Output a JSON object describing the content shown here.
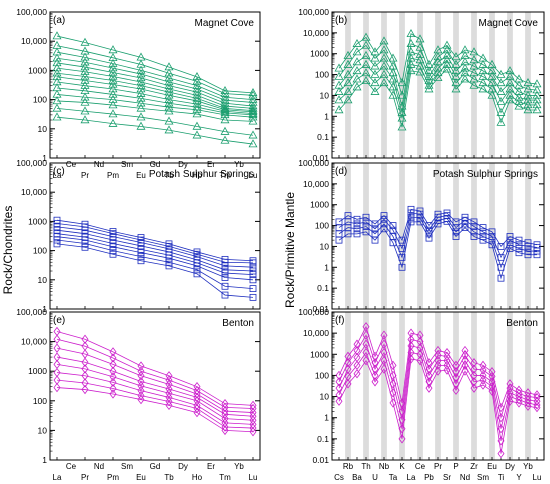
{
  "figure": {
    "left_ylabel": "Rock/Chondrites",
    "right_ylabel": "Rock/Primitive Mantle"
  },
  "chart_data": [
    {
      "id": "a",
      "type": "line",
      "panel_label": "(a)",
      "title": "Magnet Cove",
      "scale": "log",
      "ylim": [
        1,
        100000
      ],
      "yticks": [
        "1",
        "10",
        "100",
        "1000",
        "10,000",
        "100,000"
      ],
      "xticks_top": [
        "Ce",
        "Nd",
        "Sm",
        "Gd",
        "Dy",
        "Er",
        "Yb"
      ],
      "xticks_bottom": [
        "La",
        "Pr",
        "Pm",
        "Eu",
        "Tb",
        "Ho",
        "Tm",
        "Lu"
      ],
      "categories": [
        "La",
        "Ce",
        "Nd",
        "Sm",
        "Eu",
        "Tb",
        "Yb",
        "Lu"
      ],
      "marker": "triangle",
      "color": "#1a9e6e",
      "series": [
        {
          "values": [
            15000,
            9000,
            5000,
            2800,
            1300,
            600,
            200,
            170
          ]
        },
        {
          "values": [
            7000,
            4500,
            2700,
            1600,
            800,
            420,
            160,
            140
          ]
        },
        {
          "values": [
            4200,
            2800,
            1700,
            1000,
            550,
            300,
            120,
            100
          ]
        },
        {
          "values": [
            2600,
            1900,
            1200,
            750,
            400,
            230,
            95,
            80
          ]
        },
        {
          "values": [
            1800,
            1300,
            850,
            550,
            300,
            180,
            75,
            60
          ]
        },
        {
          "values": [
            1200,
            900,
            620,
            400,
            230,
            140,
            60,
            50
          ]
        },
        {
          "values": [
            800,
            620,
            450,
            300,
            180,
            110,
            50,
            42
          ]
        },
        {
          "values": [
            600,
            450,
            330,
            230,
            140,
            90,
            45,
            38
          ]
        },
        {
          "values": [
            400,
            300,
            230,
            160,
            100,
            70,
            40,
            33
          ]
        },
        {
          "values": [
            250,
            200,
            150,
            110,
            75,
            55,
            35,
            30
          ]
        },
        {
          "values": [
            150,
            120,
            100,
            75,
            55,
            45,
            30,
            25
          ]
        },
        {
          "values": [
            90,
            80,
            65,
            50,
            40,
            32,
            20,
            18
          ]
        },
        {
          "values": [
            50,
            40,
            32,
            25,
            18,
            12,
            8,
            6
          ]
        },
        {
          "values": [
            25,
            20,
            15,
            12,
            9,
            6,
            4,
            3
          ]
        }
      ]
    },
    {
      "id": "b",
      "type": "line",
      "panel_label": "(b)",
      "title": "Magnet Cove",
      "scale": "log",
      "ylim": [
        0.01,
        100000
      ],
      "yticks": [
        "0.01",
        "0.1",
        "1",
        "10",
        "100",
        "1000",
        "10,000",
        "100,000"
      ],
      "xticks_top": [],
      "xticks_bottom": [],
      "categories": [
        "Cs",
        "Rb",
        "Ba",
        "Th",
        "U",
        "Nb",
        "Ta",
        "K",
        "La",
        "Ce",
        "Pb",
        "Pr",
        "Sr",
        "P",
        "Nd",
        "Zr",
        "Sm",
        "Eu",
        "Ti",
        "Dy",
        "Y",
        "Yb",
        "Lu"
      ],
      "marker": "triangle",
      "color": "#1a9e6e",
      "series": [
        {
          "values": [
            200,
            800,
            3000,
            6000,
            1200,
            4000,
            600,
            40,
            9000,
            5000,
            300,
            1500,
            2500,
            700,
            1500,
            1200,
            600,
            300,
            100,
            150,
            60,
            40,
            35
          ]
        },
        {
          "values": [
            80,
            300,
            1200,
            2500,
            600,
            1500,
            250,
            10,
            3000,
            2000,
            150,
            700,
            1500,
            300,
            800,
            500,
            300,
            150,
            40,
            80,
            30,
            20,
            18
          ]
        },
        {
          "values": [
            30,
            100,
            400,
            800,
            250,
            600,
            120,
            3,
            1200,
            900,
            80,
            400,
            800,
            150,
            400,
            250,
            150,
            80,
            15,
            40,
            15,
            10,
            10
          ]
        },
        {
          "values": [
            15,
            40,
            150,
            300,
            100,
            250,
            60,
            1.5,
            600,
            500,
            50,
            200,
            500,
            80,
            200,
            120,
            80,
            40,
            5,
            20,
            8,
            6,
            6
          ]
        },
        {
          "values": [
            6,
            15,
            60,
            120,
            40,
            100,
            25,
            0.8,
            300,
            250,
            30,
            120,
            300,
            40,
            120,
            60,
            40,
            20,
            1.5,
            10,
            5,
            3.5,
            3.5
          ]
        },
        {
          "values": [
            2,
            6,
            25,
            50,
            15,
            40,
            10,
            0.3,
            150,
            130,
            20,
            70,
            180,
            20,
            60,
            30,
            20,
            10,
            0.5,
            6,
            3,
            2,
            2
          ]
        }
      ]
    },
    {
      "id": "c",
      "type": "line",
      "panel_label": "(c)",
      "title": "Potash Sulphur Springs",
      "scale": "log",
      "ylim": [
        1,
        100000
      ],
      "yticks": [
        "1",
        "10",
        "100",
        "1000",
        "10,000",
        "100,000"
      ],
      "xticks_top": [],
      "xticks_bottom": [],
      "categories": [
        "La",
        "Ce",
        "Nd",
        "Sm",
        "Eu",
        "Tb",
        "Yb",
        "Lu"
      ],
      "marker": "square",
      "color": "#1f2fbf",
      "series": [
        {
          "values": [
            1100,
            800,
            450,
            280,
            170,
            90,
            50,
            45
          ]
        },
        {
          "values": [
            850,
            650,
            380,
            230,
            140,
            75,
            40,
            38
          ]
        },
        {
          "values": [
            650,
            500,
            300,
            190,
            115,
            62,
            30,
            27
          ]
        },
        {
          "values": [
            500,
            380,
            230,
            145,
            90,
            48,
            22,
            20
          ]
        },
        {
          "values": [
            380,
            290,
            175,
            110,
            70,
            38,
            17,
            15
          ]
        },
        {
          "values": [
            300,
            230,
            135,
            85,
            55,
            30,
            12,
            10
          ]
        },
        {
          "values": [
            230,
            175,
            100,
            62,
            40,
            22,
            6,
            5
          ]
        },
        {
          "values": [
            170,
            130,
            75,
            45,
            30,
            16,
            3,
            2.5
          ]
        }
      ]
    },
    {
      "id": "d",
      "type": "line",
      "panel_label": "(d)",
      "title": "Potash Sulphur Springs",
      "scale": "log",
      "ylim": [
        0.01,
        100000
      ],
      "yticks": [
        "0.01",
        "0.1",
        "1",
        "10",
        "100",
        "1000",
        "10,000",
        "100,000"
      ],
      "xticks_top": [],
      "xticks_bottom": [],
      "categories": [
        "Cs",
        "Rb",
        "Ba",
        "Th",
        "U",
        "Nb",
        "Ta",
        "K",
        "La",
        "Ce",
        "Pb",
        "Pr",
        "Sr",
        "P",
        "Nd",
        "Zr",
        "Sm",
        "Eu",
        "Ti",
        "Dy",
        "Y",
        "Yb",
        "Lu"
      ],
      "marker": "square",
      "color": "#1f2fbf",
      "series": [
        {
          "values": [
            150,
            300,
            200,
            250,
            120,
            300,
            100,
            20,
            600,
            500,
            100,
            350,
            400,
            150,
            250,
            150,
            80,
            50,
            10,
            30,
            20,
            15,
            12
          ]
        },
        {
          "values": [
            80,
            150,
            120,
            150,
            70,
            200,
            60,
            8,
            400,
            350,
            60,
            250,
            300,
            80,
            180,
            90,
            50,
            30,
            3,
            20,
            12,
            10,
            9
          ]
        },
        {
          "values": [
            40,
            80,
            70,
            90,
            40,
            120,
            30,
            3,
            250,
            230,
            40,
            180,
            220,
            50,
            120,
            50,
            30,
            20,
            1,
            12,
            8,
            6,
            6
          ]
        },
        {
          "values": [
            20,
            40,
            40,
            50,
            20,
            70,
            15,
            1,
            150,
            150,
            25,
            120,
            160,
            30,
            80,
            30,
            20,
            12,
            0.3,
            8,
            5,
            4,
            4
          ]
        }
      ]
    },
    {
      "id": "e",
      "type": "line",
      "panel_label": "(e)",
      "title": "Benton",
      "scale": "log",
      "ylim": [
        1,
        100000
      ],
      "yticks": [
        "1",
        "10",
        "100",
        "1000",
        "10,000",
        "100,000"
      ],
      "xticks_top": [
        "Ce",
        "Nd",
        "Sm",
        "Gd",
        "Dy",
        "Er",
        "Yb"
      ],
      "xticks_bottom": [
        "La",
        "Pr",
        "Pm",
        "Eu",
        "Tb",
        "Ho",
        "Tm",
        "Lu"
      ],
      "categories": [
        "La",
        "Ce",
        "Nd",
        "Sm",
        "Eu",
        "Tb",
        "Yb",
        "Lu"
      ],
      "marker": "diamond",
      "color": "#cc1fcc",
      "series": [
        {
          "values": [
            22000,
            12000,
            4500,
            1500,
            700,
            300,
            80,
            70
          ]
        },
        {
          "values": [
            12000,
            7000,
            2800,
            1000,
            500,
            220,
            60,
            55
          ]
        },
        {
          "values": [
            6000,
            3800,
            1700,
            700,
            360,
            170,
            45,
            40
          ]
        },
        {
          "values": [
            3000,
            2000,
            1000,
            450,
            250,
            130,
            35,
            30
          ]
        },
        {
          "values": [
            1700,
            1200,
            650,
            320,
            180,
            100,
            25,
            22
          ]
        },
        {
          "values": [
            900,
            700,
            420,
            220,
            130,
            70,
            18,
            16
          ]
        },
        {
          "values": [
            500,
            400,
            260,
            150,
            95,
            55,
            13,
            12
          ]
        },
        {
          "values": [
            280,
            240,
            170,
            110,
            70,
            40,
            10,
            9
          ]
        }
      ]
    },
    {
      "id": "f",
      "type": "line",
      "panel_label": "(f)",
      "title": "Benton",
      "scale": "log",
      "ylim": [
        0.01,
        100000
      ],
      "yticks": [
        "0.01",
        "0.1",
        "1",
        "10",
        "100",
        "1000",
        "10,000",
        "100,000"
      ],
      "xticks_top": [
        "Rb",
        "Th",
        "Nb",
        "K",
        "Ce",
        "Pr",
        "P",
        "Zr",
        "Eu",
        "Dy",
        "Yb"
      ],
      "xticks_bottom": [
        "Cs",
        "Ba",
        "U",
        "Ta",
        "La",
        "Pb",
        "Sr",
        "Nd",
        "Sm",
        "Ti",
        "Y",
        "Lu"
      ],
      "categories": [
        "Cs",
        "Rb",
        "Ba",
        "Th",
        "U",
        "Nb",
        "Ta",
        "K",
        "La",
        "Ce",
        "Pb",
        "Pr",
        "Sr",
        "P",
        "Nd",
        "Zr",
        "Sm",
        "Eu",
        "Ti",
        "Dy",
        "Y",
        "Yb",
        "Lu"
      ],
      "marker": "diamond",
      "color": "#cc1fcc",
      "series": [
        {
          "values": [
            100,
            800,
            3000,
            20000,
            800,
            8000,
            300,
            5,
            10000,
            8000,
            400,
            1500,
            1200,
            300,
            1500,
            400,
            300,
            150,
            3,
            40,
            20,
            15,
            12
          ]
        },
        {
          "values": [
            50,
            400,
            1500,
            8000,
            400,
            3000,
            100,
            2,
            5000,
            4000,
            200,
            900,
            800,
            150,
            900,
            200,
            180,
            90,
            1,
            25,
            14,
            10,
            9
          ]
        },
        {
          "values": [
            25,
            200,
            700,
            3000,
            200,
            1200,
            40,
            0.8,
            2500,
            2000,
            100,
            500,
            500,
            80,
            500,
            100,
            100,
            50,
            0.3,
            15,
            10,
            7,
            6
          ]
        },
        {
          "values": [
            12,
            90,
            300,
            1200,
            100,
            500,
            15,
            0.3,
            1200,
            1000,
            50,
            300,
            300,
            40,
            300,
            50,
            60,
            30,
            0.08,
            10,
            7,
            5,
            4
          ]
        },
        {
          "values": [
            6,
            40,
            120,
            500,
            50,
            200,
            5,
            0.1,
            600,
            500,
            25,
            160,
            180,
            20,
            160,
            25,
            35,
            18,
            0.02,
            6,
            5,
            3.5,
            3
          ]
        }
      ]
    }
  ]
}
